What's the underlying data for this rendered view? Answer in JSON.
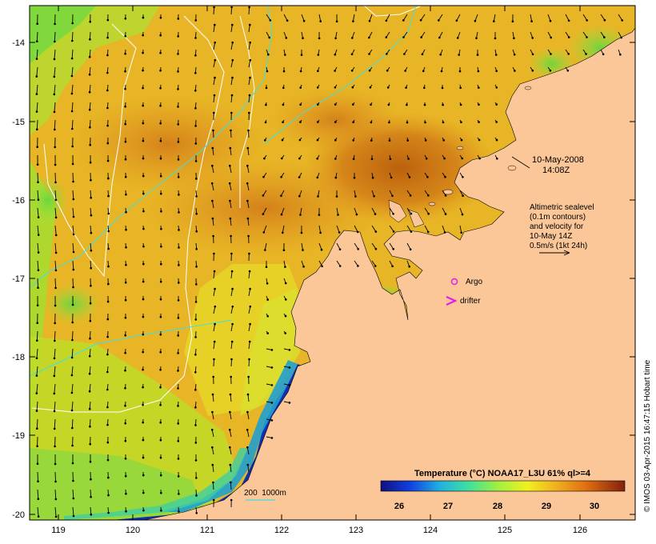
{
  "map": {
    "x_ticks": [
      "119",
      "120",
      "121",
      "122",
      "123",
      "124",
      "125",
      "126"
    ],
    "y_ticks": [
      "-14",
      "-15",
      "-16",
      "-17",
      "-18",
      "-19",
      "-20"
    ],
    "date_line1": "10-May-2008",
    "date_line2": "14:08Z",
    "velocity_note": [
      "Altimetric sealevel",
      "(0.1m contours)",
      "and velocity for",
      "10-May 14Z",
      "0.5m/s (1kt 24h)"
    ],
    "argo_label": "Argo",
    "drifter_label": "drifter",
    "depth_scale_label": "200  1000m",
    "credit": "© IMOS 03-Apr-2015 16:47:15 Hobart time"
  },
  "colorbar": {
    "title": "Temperature (°C) NOAA17_L3U 61% ql>=4",
    "ticks": [
      "26",
      "27",
      "28",
      "29",
      "30"
    ]
  },
  "colors": {
    "land": "#fbc799",
    "sea_warm": "#e08a1c",
    "sea_hot": "#c06010",
    "sea_mid": "#f0b020",
    "sea_cool": "#e8e030",
    "sea_green": "#90e040",
    "sea_cyan": "#40d0a0",
    "sea_blue": "#1030c0",
    "argo": "#e020e0",
    "drifter": "#e020e0",
    "depth_200": "#40e0e0"
  }
}
